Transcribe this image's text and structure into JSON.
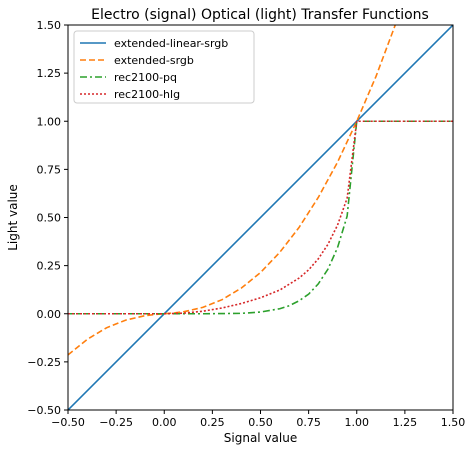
{
  "chart_data": {
    "type": "line",
    "title": "Electro (signal) Optical (light) Transfer Functions",
    "xlabel": "Signal value",
    "ylabel": "Light value",
    "xlim": [
      -0.5,
      1.5
    ],
    "ylim": [
      -0.5,
      1.5
    ],
    "xticks": [
      -0.5,
      -0.25,
      0.0,
      0.25,
      0.5,
      0.75,
      1.0,
      1.25,
      1.5
    ],
    "yticks": [
      -0.5,
      -0.25,
      0.0,
      0.25,
      0.5,
      0.75,
      1.0,
      1.25,
      1.5
    ],
    "xtick_labels": [
      "−0.50",
      "−0.25",
      "0.00",
      "0.25",
      "0.50",
      "0.75",
      "1.00",
      "1.25",
      "1.50"
    ],
    "ytick_labels": [
      "−0.50",
      "−0.25",
      "0.00",
      "0.25",
      "0.50",
      "0.75",
      "1.00",
      "1.25",
      "1.50"
    ],
    "grid": false,
    "legend_position": "top-left",
    "series": [
      {
        "name": "extended-linear-srgb",
        "color": "#1f77b4",
        "dash": "solid",
        "x": [
          -0.5,
          1.5
        ],
        "y": [
          -0.5,
          1.5
        ]
      },
      {
        "name": "extended-srgb",
        "color": "#ff7f0e",
        "dash": "dashed",
        "x": [
          -0.5,
          -0.4,
          -0.3,
          -0.2,
          -0.1,
          -0.04,
          0.0,
          0.04,
          0.1,
          0.2,
          0.3,
          0.4,
          0.5,
          0.6,
          0.7,
          0.8,
          0.9,
          1.0,
          1.1,
          1.2
        ],
        "y": [
          -0.214,
          -0.133,
          -0.073,
          -0.033,
          -0.01,
          -0.003,
          0.0,
          0.003,
          0.01,
          0.033,
          0.073,
          0.133,
          0.214,
          0.319,
          0.448,
          0.604,
          0.787,
          1.0,
          1.233,
          1.5
        ]
      },
      {
        "name": "rec2100-pq",
        "color": "#2ca02c",
        "dash": "dashdot",
        "x": [
          -0.5,
          0.0,
          0.1,
          0.2,
          0.3,
          0.4,
          0.5,
          0.6,
          0.65,
          0.7,
          0.75,
          0.8,
          0.85,
          0.9,
          0.95,
          1.0,
          1.5
        ],
        "y": [
          0.0,
          0.0,
          0.0,
          0.0,
          0.001,
          0.002,
          0.009,
          0.026,
          0.042,
          0.067,
          0.102,
          0.155,
          0.231,
          0.343,
          0.507,
          1.0,
          1.0
        ]
      },
      {
        "name": "rec2100-hlg",
        "color": "#d62728",
        "dash": "dotted",
        "x": [
          -0.5,
          0.0,
          0.1,
          0.2,
          0.3,
          0.4,
          0.5,
          0.6,
          0.7,
          0.75,
          0.8,
          0.85,
          0.9,
          0.95,
          1.0,
          1.5
        ],
        "y": [
          0.0,
          0.0,
          0.003,
          0.013,
          0.03,
          0.053,
          0.083,
          0.123,
          0.185,
          0.228,
          0.285,
          0.36,
          0.46,
          0.6,
          1.0,
          1.0
        ]
      }
    ]
  }
}
